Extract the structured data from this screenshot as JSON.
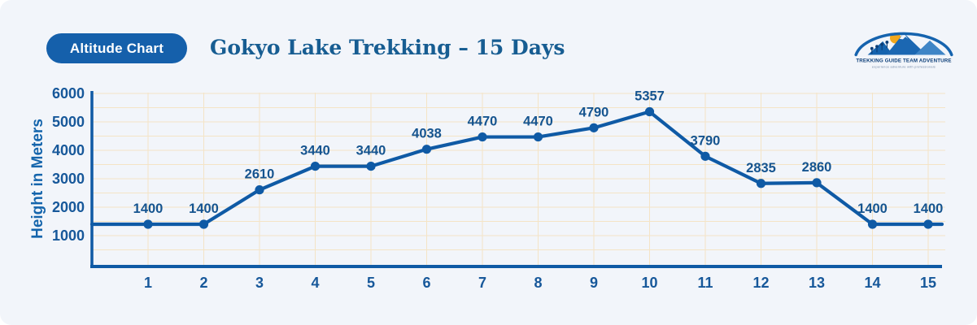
{
  "page": {
    "background": "#f2f5fa"
  },
  "header": {
    "badge_label": "Altitude Chart",
    "title": "Gokyo Lake Trekking – 15 Days",
    "logo": {
      "name": "TREKKING GUIDE TEAM ADVENTURE",
      "tagline": "experience adventure with professionals",
      "sun_color": "#f2a71b",
      "mountain_color": "#1b67b2",
      "arch_color": "#1563ae"
    }
  },
  "chart_data": {
    "type": "line",
    "title": "Gokyo Lake Trekking – 15 Days",
    "xlabel": "",
    "ylabel": "Height in Meters",
    "x": [
      1,
      2,
      3,
      4,
      5,
      6,
      7,
      8,
      9,
      10,
      11,
      12,
      13,
      14,
      15
    ],
    "values": [
      1400,
      1400,
      2610,
      3440,
      3440,
      4038,
      4470,
      4470,
      4790,
      5357,
      3790,
      2835,
      2860,
      1400,
      1400
    ],
    "point_labels": [
      "1400",
      "1400",
      "2610",
      "3440",
      "3440",
      "4038",
      "4470",
      "4470",
      "4790",
      "5357",
      "3790",
      "2835",
      "2860",
      "1400",
      "1400"
    ],
    "y_ticks": [
      1000,
      2000,
      3000,
      4000,
      5000,
      6000
    ],
    "ylim": [
      0,
      6000
    ],
    "grid": true,
    "grid_step": 500,
    "legend_position": "none",
    "line_color": "#0f5aa5",
    "point_color": "#0f5aa5",
    "axis_color": "#0f5aa5",
    "grid_color": "#f4e4c6",
    "tick_color": "#17589a",
    "label_color": "#15548f"
  }
}
